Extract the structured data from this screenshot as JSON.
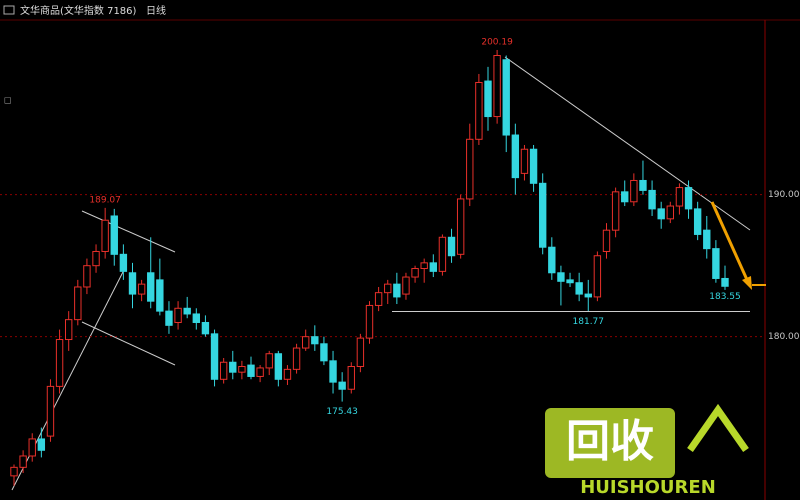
{
  "header": {
    "title": "文华商品(文华指数 7186)",
    "period": "日线"
  },
  "chart_data": {
    "type": "candlestick",
    "up_color": "#e8302a",
    "down_color": "#35d6e0",
    "open": [
      170.2,
      170.8,
      171.6,
      172.8,
      173,
      176.5,
      179.8,
      181.2,
      183.5,
      185,
      186,
      188.5,
      185.8,
      184.5,
      183,
      184.5,
      184,
      181.8,
      181,
      182,
      181.6,
      181,
      180.2,
      177,
      178.2,
      177.5,
      178,
      177.2,
      177.8,
      178.8,
      177,
      177.7,
      179.2,
      180,
      179.5,
      178.3,
      176.8,
      176.3,
      177.9,
      179.9,
      182.2,
      183.1,
      183.7,
      183,
      184.2,
      184.8,
      185.2,
      184.6,
      187,
      185.8,
      189.7,
      193.9,
      198,
      195.5,
      199.5,
      194.2,
      191.5,
      193.2,
      190.8,
      186.3,
      184.5,
      184,
      183.8,
      183,
      182.8,
      186,
      187.5,
      190.2,
      189.5,
      191,
      190.3,
      189,
      188.3,
      189.2,
      190.5,
      189,
      187.5,
      186.2,
      184.1
    ],
    "high": [
      171,
      172,
      173.2,
      173.6,
      177,
      180.5,
      181.8,
      184,
      185.5,
      186.5,
      189.07,
      189,
      186.5,
      185.2,
      184,
      187,
      185.5,
      182.5,
      182.5,
      182.8,
      182,
      181.5,
      180.5,
      178.5,
      179,
      178.3,
      178.6,
      178,
      179,
      179,
      178,
      179.5,
      180.5,
      180.8,
      180,
      179,
      177.5,
      178.2,
      180.2,
      182.5,
      183.5,
      184,
      184.5,
      184.5,
      185,
      185.5,
      185.8,
      187.2,
      187.6,
      190,
      195,
      198.5,
      199,
      200.19,
      199.8,
      195,
      193.5,
      193.5,
      191.5,
      187,
      185,
      184.5,
      184.5,
      184,
      186,
      188,
      190.5,
      191,
      191.5,
      192.4,
      191,
      189.5,
      189.5,
      190.8,
      191,
      189.5,
      188.5,
      186.8,
      185
    ],
    "low": [
      169.5,
      170.4,
      171.2,
      171.5,
      172.6,
      176,
      179,
      180.8,
      183,
      184.5,
      185.5,
      185,
      184,
      182,
      182.5,
      182,
      181.5,
      180.2,
      180.5,
      181.3,
      180.5,
      180,
      176.5,
      176.7,
      177,
      177,
      177,
      176.8,
      177.3,
      176.5,
      176.6,
      177.4,
      179,
      179,
      178,
      176,
      175.43,
      176,
      177.5,
      179.5,
      181.8,
      182.3,
      182.3,
      182.6,
      183.8,
      183.8,
      184.2,
      184.3,
      185.2,
      185.5,
      189.2,
      193.5,
      194.5,
      195,
      193,
      190,
      191,
      190.2,
      185.8,
      184,
      182.2,
      183.5,
      182.5,
      181.77,
      182.5,
      185.5,
      187,
      189.2,
      189.2,
      190,
      188.5,
      187.6,
      188,
      188.6,
      188.3,
      186.8,
      185.5,
      183.8,
      183.3
    ],
    "close": [
      170.8,
      171.6,
      172.8,
      172,
      176.5,
      179.8,
      181.2,
      183.5,
      185,
      186,
      188.2,
      185.8,
      184.6,
      183,
      183.7,
      182.5,
      181.8,
      180.8,
      182,
      181.6,
      181,
      180.2,
      177,
      178.2,
      177.5,
      177.9,
      177.2,
      177.8,
      178.8,
      177,
      177.7,
      179.2,
      180,
      179.5,
      178.3,
      176.8,
      176.3,
      177.9,
      179.9,
      182.2,
      183.1,
      183.7,
      182.8,
      184.2,
      184.8,
      185.2,
      184.6,
      187,
      185.7,
      189.7,
      193.9,
      197.9,
      195.5,
      199.8,
      194.2,
      191.2,
      193.2,
      190.8,
      186.3,
      184.5,
      183.9,
      183.8,
      183,
      182.8,
      185.7,
      187.5,
      190.2,
      189.5,
      191,
      190.3,
      189,
      188.3,
      189.2,
      190.5,
      189,
      187.2,
      186.2,
      184.1,
      183.55
    ],
    "ylim": [
      168.5,
      202.3
    ],
    "yticks": [
      {
        "value": 180,
        "label": "180.00"
      },
      {
        "value": 190,
        "label": "190.00"
      }
    ],
    "grid": true,
    "annotations": [
      189.07,
      200.19,
      175.43,
      181.77,
      183.55
    ]
  },
  "watermark": {
    "logo": "回收",
    "brand": "HUISHOUREN"
  }
}
